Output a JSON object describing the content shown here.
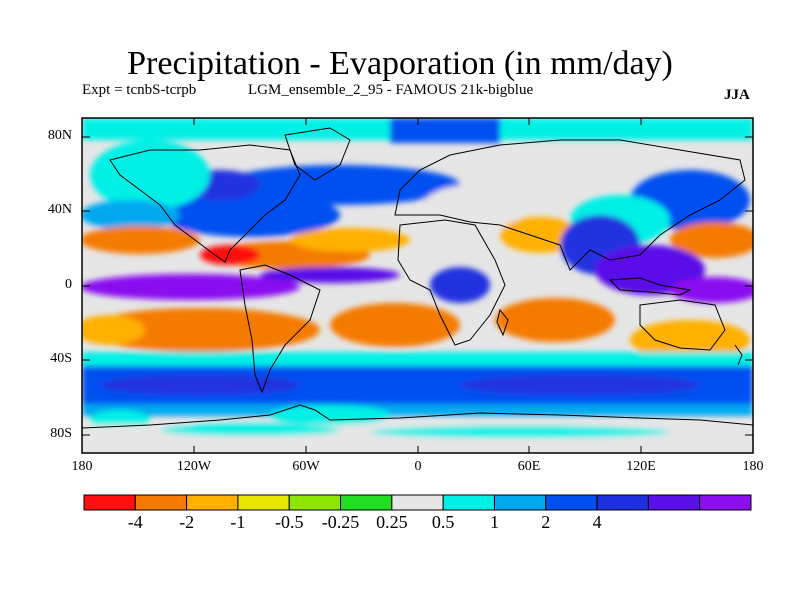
{
  "title": "Precipitation - Evaporation (in mm/day)",
  "subtitle_left": "Expt = tcnbS-tcrpb",
  "subtitle_mid": "LGM_ensemble_2_95 - FAMOUS 21k-bigblue",
  "season": "JJA",
  "lat_labels": [
    "80N",
    "40N",
    "0",
    "40S",
    "80S"
  ],
  "lon_labels": [
    "180",
    "120W",
    "60W",
    "0",
    "60E",
    "120E",
    "180"
  ],
  "colorbar": {
    "colors": [
      "#ff1010",
      "#f47a00",
      "#ffb000",
      "#e6e600",
      "#8ee600",
      "#22dd22",
      "#e6e6e6",
      "#00f0e6",
      "#00a8f0",
      "#0050f0",
      "#2030e0",
      "#5a10e8",
      "#8a10f0"
    ],
    "labels": [
      "-4",
      "-2",
      "-1",
      "-0.5",
      "-0.25",
      "0.25",
      "0.5",
      "1",
      "2",
      "4"
    ]
  }
}
